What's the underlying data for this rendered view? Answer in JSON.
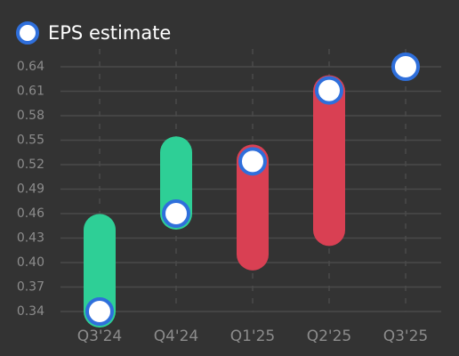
{
  "chart_data": {
    "type": "range-bar with estimate markers",
    "legend": {
      "label": "EPS estimate",
      "position": "top-left"
    },
    "categories": [
      "Q3'24",
      "Q4'24",
      "Q1'25",
      "Q2'25",
      "Q3'25"
    ],
    "y_ticks": [
      "0.34",
      "0.37",
      "0.40",
      "0.43",
      "0.46",
      "0.49",
      "0.52",
      "0.55",
      "0.58",
      "0.61",
      "0.64"
    ],
    "ylim": [
      0.34,
      0.64
    ],
    "grid": {
      "horizontal": true,
      "vertical": "dashed"
    },
    "ranges": [
      {
        "category": "Q3'24",
        "low": 0.34,
        "high": 0.44,
        "direction": "up"
      },
      {
        "category": "Q4'24",
        "low": 0.46,
        "high": 0.535,
        "direction": "up"
      },
      {
        "category": "Q1'25",
        "low": 0.41,
        "high": 0.525,
        "direction": "down"
      },
      {
        "category": "Q2'25",
        "low": 0.44,
        "high": 0.61,
        "direction": "down"
      }
    ],
    "estimates": [
      {
        "category": "Q3'24",
        "value": 0.34
      },
      {
        "category": "Q4'24",
        "value": 0.46
      },
      {
        "category": "Q1'25",
        "value": 0.524
      },
      {
        "category": "Q2'25",
        "value": 0.611
      },
      {
        "category": "Q3'25",
        "value": 0.64
      }
    ],
    "colors": {
      "background": "#333333",
      "up": "#2ecf96",
      "down": "#d94053",
      "marker_fill": "#ffffff",
      "marker_stroke": "#2f6fdb",
      "grid": "#4a4a4a",
      "tick_text": "#8c8c8c",
      "legend_text": "#ffffff"
    }
  }
}
